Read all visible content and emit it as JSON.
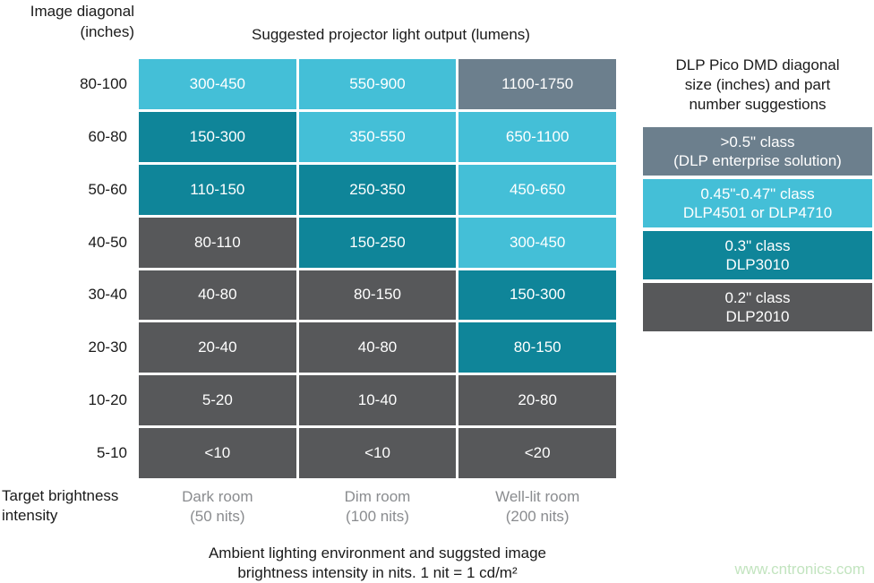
{
  "page": {
    "row_axis_title_lines": [
      "Image diagonal",
      "(inches)"
    ],
    "col_axis_title_lines": [
      "Target brightness",
      "intensity"
    ],
    "caption_lines": [
      "Ambient lighting environment and suggsted image",
      "brightness intensity in nits. 1 nit = 1 cd/m²"
    ],
    "watermark": "www.cntronics.com"
  },
  "colors": {
    "cyan": "#44BFD7",
    "teal": "#0F8599",
    "dark": "#57585A",
    "slate": "#6C7F8D",
    "label_gray": "#8A8C8F",
    "watermark_green": "#C2E4BF",
    "cell_text": "#FFFFFF",
    "text_black": "#1A1A1A"
  },
  "chart_data": {
    "type": "heatmap",
    "title": "Suggested projector light output (lumens)",
    "row_axis_label": "Image diagonal (inches)",
    "col_axis_label": "Target brightness intensity",
    "rows": [
      "80-100",
      "60-80",
      "50-60",
      "40-50",
      "30-40",
      "20-30",
      "10-20",
      "5-10"
    ],
    "columns": [
      "Dark room (50 nits)",
      "Dim room (100 nits)",
      "Well-lit room (200 nits)"
    ],
    "column_label_lines": [
      [
        "Dark room",
        "(50 nits)"
      ],
      [
        "Dim room",
        "(100 nits)"
      ],
      [
        "Well-lit room",
        "(200 nits)"
      ]
    ],
    "values": [
      [
        "300-450",
        "550-900",
        "1100-1750"
      ],
      [
        "150-300",
        "350-550",
        "650-1100"
      ],
      [
        "110-150",
        "250-350",
        "450-650"
      ],
      [
        "80-110",
        "150-250",
        "300-450"
      ],
      [
        "40-80",
        "80-150",
        "150-300"
      ],
      [
        "20-40",
        "40-80",
        "80-150"
      ],
      [
        "5-20",
        "10-40",
        "20-80"
      ],
      [
        "<10",
        "<10",
        "<20"
      ]
    ],
    "cell_color_keys": [
      [
        "cyan",
        "cyan",
        "slate"
      ],
      [
        "teal",
        "cyan",
        "cyan"
      ],
      [
        "teal",
        "teal",
        "cyan"
      ],
      [
        "dark",
        "teal",
        "cyan"
      ],
      [
        "dark",
        "dark",
        "teal"
      ],
      [
        "dark",
        "dark",
        "teal"
      ],
      [
        "dark",
        "dark",
        "dark"
      ],
      [
        "dark",
        "dark",
        "dark"
      ]
    ],
    "legend": {
      "title_lines": [
        "DLP Pico DMD diagonal",
        "size (inches) and part",
        "number suggestions"
      ],
      "items": [
        {
          "lines": [
            ">0.5\" class",
            "(DLP enterprise solution)"
          ],
          "color_key": "slate"
        },
        {
          "lines": [
            "0.45\"-0.47\" class",
            "DLP4501 or DLP4710"
          ],
          "color_key": "cyan"
        },
        {
          "lines": [
            "0.3\" class",
            "DLP3010"
          ],
          "color_key": "teal"
        },
        {
          "lines": [
            "0.2\" class",
            "DLP2010"
          ],
          "color_key": "dark"
        }
      ]
    }
  }
}
